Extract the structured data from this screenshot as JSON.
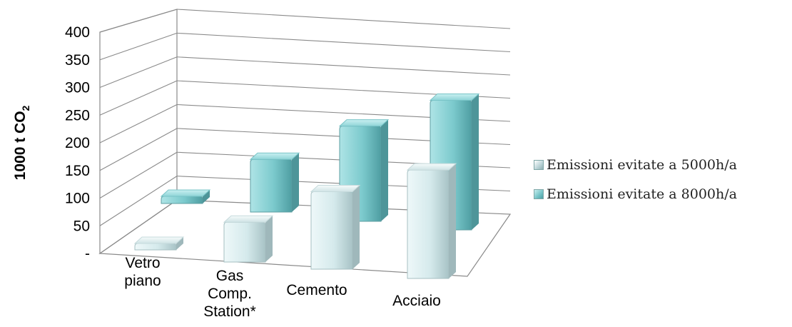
{
  "chart_data": {
    "type": "bar",
    "variant": "3d-clustered-depth",
    "title": "",
    "xlabel": "",
    "ylabel": "1000 t CO",
    "ylabel_subscript": "2",
    "ylim": [
      0,
      400
    ],
    "yticks": [
      "-",
      "50",
      "100",
      "150",
      "200",
      "250",
      "300",
      "350",
      "400"
    ],
    "categories": [
      [
        "Vetro",
        "piano"
      ],
      [
        "Gas",
        "Comp.",
        "Station*"
      ],
      [
        "Cemento"
      ],
      [
        "Acciaio"
      ]
    ],
    "series": [
      {
        "name": "Emissioni evitate a 5000h/a",
        "values": [
          5,
          90,
          175,
          245
        ],
        "color": "#d6ecee"
      },
      {
        "name": "Emissioni evitate a 8000h/a",
        "values": [
          8,
          130,
          235,
          320
        ],
        "color": "#7fcbcf"
      }
    ],
    "grid": true,
    "legend_position": "right"
  }
}
